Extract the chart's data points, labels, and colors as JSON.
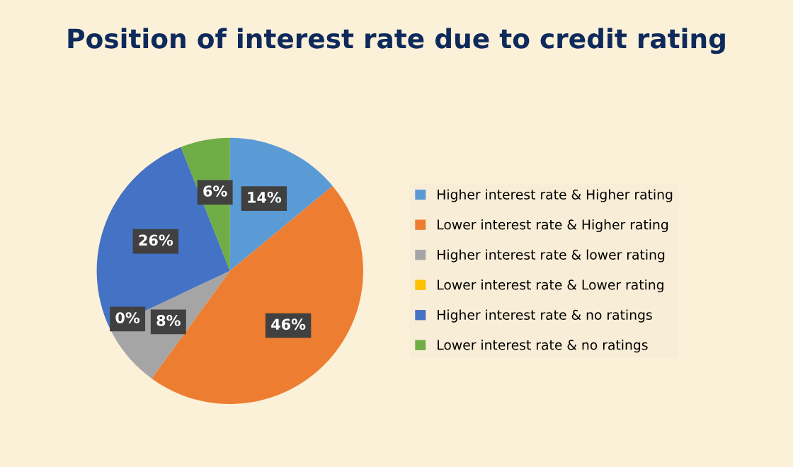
{
  "chart_data": {
    "type": "pie",
    "title": "Position of interest rate due to credit rating",
    "categories": [
      "Higher interest rate & Higher rating",
      "Lower interest rate & Higher rating",
      "Higher interest rate & lower rating",
      "Lower interest rate & Lower rating",
      "Higher interest rate & no ratings",
      "Lower interest rate & no ratings"
    ],
    "values": [
      14,
      46,
      8,
      0,
      26,
      6
    ],
    "colors": [
      "#5b9bd5",
      "#ed7d31",
      "#a5a5a5",
      "#ffc000",
      "#4472c4",
      "#70ad47"
    ],
    "value_labels": [
      "14%",
      "46%",
      "8%",
      "0%",
      "26%",
      "6%"
    ],
    "legend": "right"
  }
}
